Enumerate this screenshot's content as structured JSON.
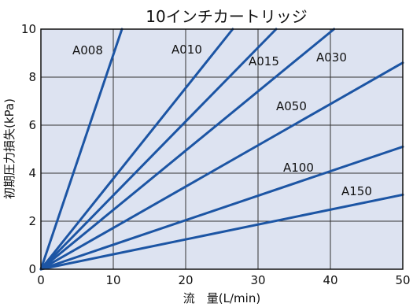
{
  "chart_data": {
    "type": "line",
    "title": "10インチカートリッジ",
    "xlabel": "流　量(L/min)",
    "ylabel": "初期圧力損失(kPa)",
    "xlim": [
      0,
      50
    ],
    "ylim": [
      0,
      10
    ],
    "x_ticks": [
      "0",
      "10",
      "20",
      "30",
      "40",
      "50"
    ],
    "y_ticks": [
      "0",
      "2",
      "4",
      "6",
      "8",
      "10"
    ],
    "grid": true,
    "legend": "inline labels",
    "colors": {
      "plot_background": "#dde3f1",
      "line": "#1c55a4",
      "grid": "#333333",
      "frame": "#111111"
    },
    "series": [
      {
        "name": "A008",
        "x": [
          0,
          11.2
        ],
        "y": [
          0,
          10
        ]
      },
      {
        "name": "A010",
        "x": [
          0,
          26.5
        ],
        "y": [
          0,
          10
        ]
      },
      {
        "name": "A015",
        "x": [
          0,
          32.5
        ],
        "y": [
          0,
          10
        ]
      },
      {
        "name": "A030",
        "x": [
          0,
          40.5
        ],
        "y": [
          0,
          10
        ]
      },
      {
        "name": "A050",
        "x": [
          0,
          50
        ],
        "y": [
          0,
          8.6
        ]
      },
      {
        "name": "A100",
        "x": [
          0,
          50
        ],
        "y": [
          0,
          5.1
        ]
      },
      {
        "name": "A150",
        "x": [
          0,
          50
        ],
        "y": [
          0,
          3.1
        ]
      }
    ]
  }
}
